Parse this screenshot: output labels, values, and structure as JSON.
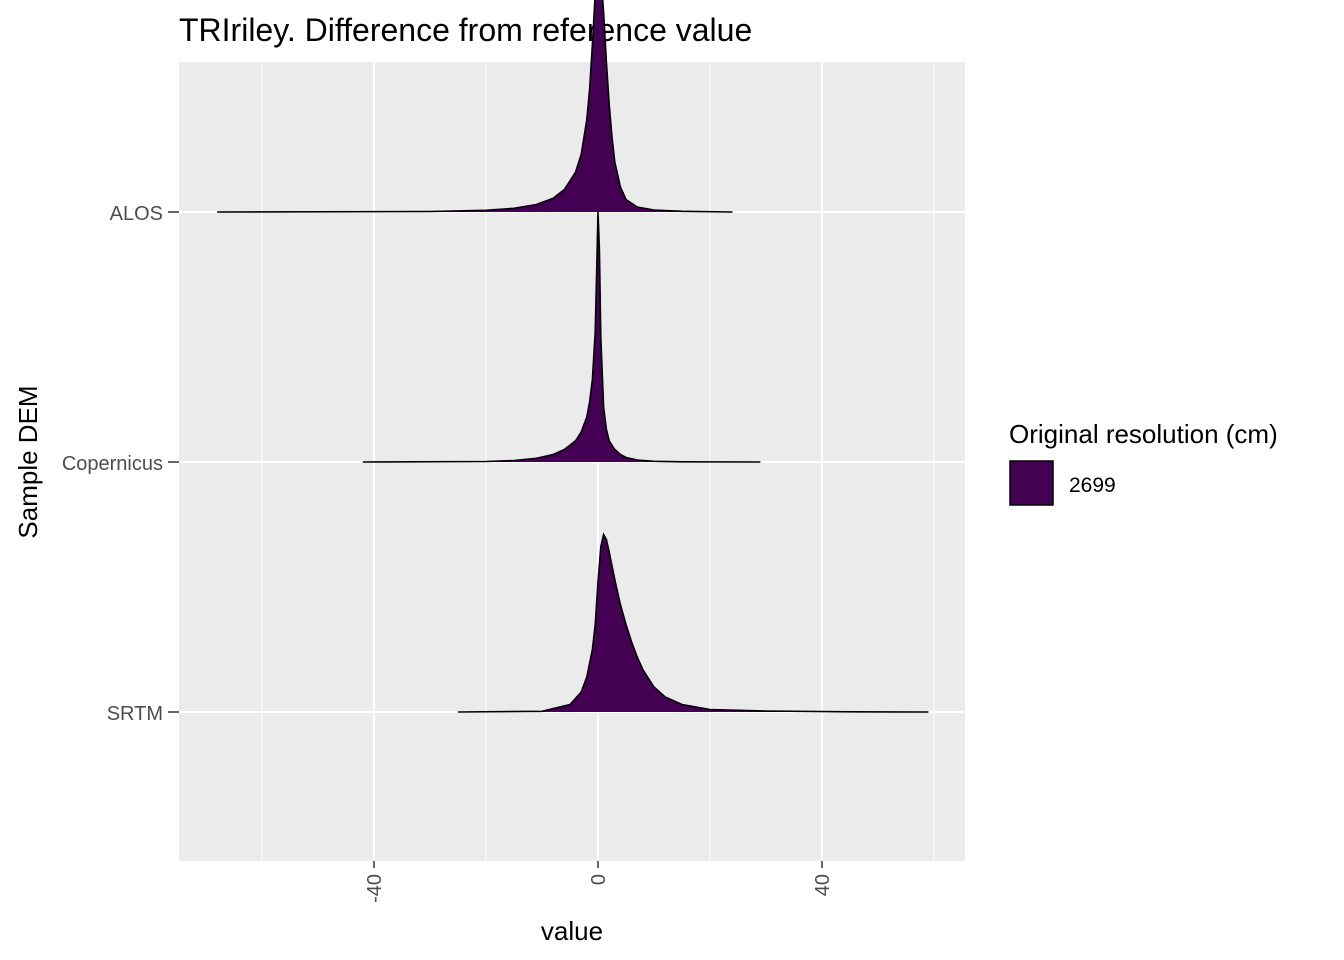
{
  "chart_data": {
    "type": "ridgeline",
    "title": "TRIriley. Difference from reference value",
    "xlabel": "value",
    "ylabel": "Sample DEM",
    "xlim": [
      -75,
      65
    ],
    "x_ticks": [
      -40,
      0,
      40
    ],
    "x_tick_labels": [
      "-40",
      "0",
      "40"
    ],
    "categories": [
      "ALOS",
      "Copernicus",
      "SRTM"
    ],
    "grid": true,
    "legend": {
      "title": "Original resolution (cm)",
      "placement": "right",
      "entries": [
        {
          "label": "2699",
          "color": "#440154"
        }
      ]
    },
    "fill_color": "#440154",
    "outline_color": "#000000",
    "series": [
      {
        "category": "ALOS",
        "x": [
          -68,
          -30,
          -20,
          -15,
          -11,
          -8,
          -6,
          -4,
          -3,
          -2,
          -1.5,
          -1,
          -0.5,
          0,
          0.5,
          1,
          1.5,
          2,
          2.5,
          3,
          4,
          5,
          7,
          10,
          15,
          24
        ],
        "density": [
          0,
          0.002,
          0.007,
          0.015,
          0.03,
          0.055,
          0.09,
          0.16,
          0.23,
          0.37,
          0.49,
          0.67,
          0.87,
          0.98,
          0.95,
          0.8,
          0.6,
          0.43,
          0.3,
          0.2,
          0.1,
          0.05,
          0.02,
          0.008,
          0.003,
          0
        ]
      },
      {
        "category": "Copernicus",
        "x": [
          -42,
          -20,
          -15,
          -11,
          -8,
          -6,
          -4,
          -3,
          -2,
          -1.5,
          -1,
          -0.5,
          -0.25,
          0,
          0.25,
          0.5,
          1,
          1.5,
          2,
          3,
          4,
          5,
          7,
          10,
          15,
          29
        ],
        "density": [
          0,
          0.002,
          0.006,
          0.015,
          0.03,
          0.05,
          0.085,
          0.12,
          0.18,
          0.24,
          0.33,
          0.52,
          0.75,
          1.0,
          0.85,
          0.5,
          0.22,
          0.13,
          0.085,
          0.05,
          0.03,
          0.018,
          0.008,
          0.003,
          0.001,
          0
        ]
      },
      {
        "category": "SRTM",
        "x": [
          -25,
          -10,
          -5,
          -3,
          -2,
          -1,
          -0.5,
          0,
          0.5,
          1,
          1.5,
          2,
          3,
          4,
          5,
          6,
          7,
          8,
          10,
          12,
          15,
          20,
          30,
          45,
          59
        ],
        "density": [
          0,
          0.003,
          0.03,
          0.08,
          0.14,
          0.25,
          0.35,
          0.52,
          0.66,
          0.71,
          0.69,
          0.64,
          0.53,
          0.43,
          0.35,
          0.28,
          0.22,
          0.17,
          0.1,
          0.06,
          0.03,
          0.01,
          0.004,
          0.001,
          0
        ]
      }
    ]
  }
}
